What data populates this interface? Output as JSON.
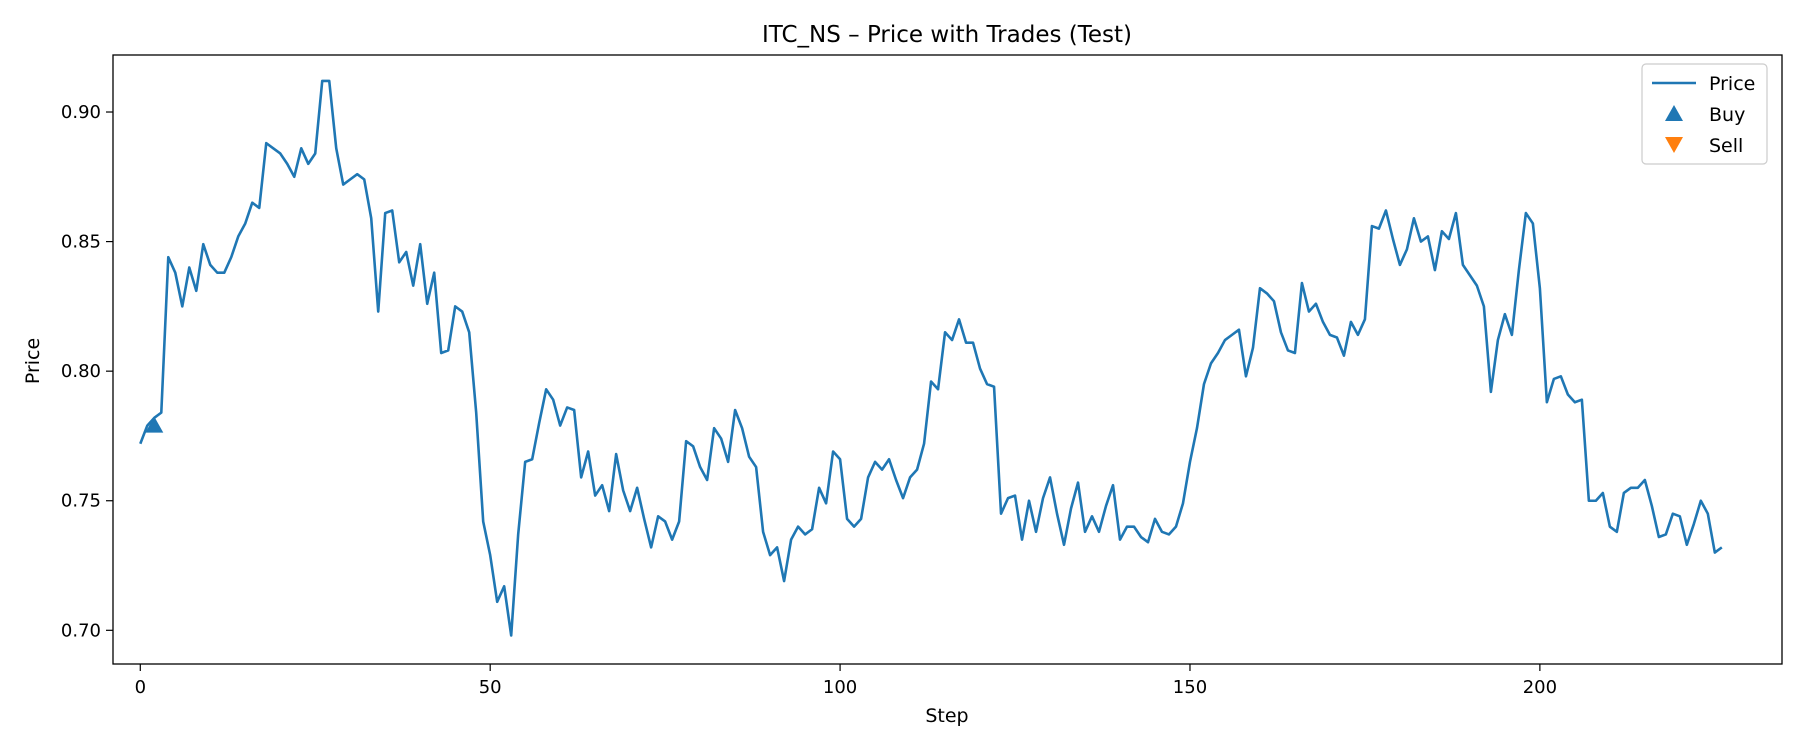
{
  "chart_data": {
    "type": "line",
    "title": "ITC_NS – Price with Trades (Test)",
    "xlabel": "Step",
    "ylabel": "Price",
    "xlim": [
      -3.9,
      234.6
    ],
    "ylim": [
      0.687,
      0.922
    ],
    "xticks": [
      0,
      50,
      100,
      150,
      200
    ],
    "yticks": [
      "0.70",
      "0.75",
      "0.80",
      "0.85",
      "0.90"
    ],
    "grid": false,
    "legend_position": "top-right",
    "colors": {
      "price": "#1f77b4",
      "buy": "#1f77b4",
      "sell": "#ff7f0e"
    },
    "series": [
      {
        "name": "Price",
        "x": [
          0,
          1,
          2,
          3,
          4,
          5,
          6,
          7,
          8,
          9,
          10,
          11,
          12,
          13,
          14,
          15,
          16,
          17,
          18,
          19,
          20,
          21,
          22,
          23,
          24,
          25,
          26,
          27,
          28,
          29,
          30,
          31,
          32,
          33,
          34,
          35,
          36,
          37,
          38,
          39,
          40,
          41,
          42,
          43,
          44,
          45,
          46,
          47,
          48,
          49,
          50,
          51,
          52,
          53,
          54,
          55,
          56,
          57,
          58,
          59,
          60,
          61,
          62,
          63,
          64,
          65,
          66,
          67,
          68,
          69,
          70,
          71,
          72,
          73,
          74,
          75,
          76,
          77,
          78,
          79,
          80,
          81,
          82,
          83,
          84,
          85,
          86,
          87,
          88,
          89,
          90,
          91,
          92,
          93,
          94,
          95,
          96,
          97,
          98,
          99,
          100,
          101,
          102,
          103,
          104,
          105,
          106,
          107,
          108,
          109,
          110,
          111,
          112,
          113,
          114,
          115,
          116,
          117,
          118,
          119,
          120,
          121,
          122,
          123,
          124,
          125,
          126,
          127,
          128,
          129,
          130,
          131,
          132,
          133,
          134,
          135,
          136,
          137,
          138,
          139,
          140,
          141,
          142,
          143,
          144,
          145,
          146,
          147,
          148,
          149,
          150,
          151,
          152,
          153,
          154,
          155,
          156,
          157,
          158,
          159,
          160,
          161,
          162,
          163,
          164,
          165,
          166,
          167,
          168,
          169,
          170,
          171,
          172,
          173,
          174,
          175,
          176,
          177,
          178,
          179,
          180,
          181,
          182,
          183,
          184,
          185,
          186,
          187,
          188,
          189,
          190,
          191,
          192,
          193,
          194,
          195,
          196,
          197,
          198,
          199,
          200,
          201,
          202,
          203,
          204,
          205,
          206,
          207,
          208,
          209,
          210,
          211,
          212,
          213,
          214,
          215,
          216,
          217,
          218,
          219,
          220,
          221,
          222,
          223,
          224,
          225,
          226
        ],
        "values": [
          0.772,
          0.779,
          0.782,
          0.784,
          0.844,
          0.838,
          0.825,
          0.84,
          0.831,
          0.849,
          0.841,
          0.838,
          0.838,
          0.844,
          0.852,
          0.857,
          0.865,
          0.863,
          0.888,
          0.886,
          0.884,
          0.88,
          0.875,
          0.886,
          0.88,
          0.884,
          0.912,
          0.912,
          0.886,
          0.872,
          0.874,
          0.876,
          0.874,
          0.859,
          0.823,
          0.861,
          0.862,
          0.842,
          0.846,
          0.833,
          0.849,
          0.826,
          0.838,
          0.807,
          0.808,
          0.825,
          0.823,
          0.815,
          0.784,
          0.742,
          0.729,
          0.711,
          0.717,
          0.698,
          0.737,
          0.765,
          0.766,
          0.78,
          0.793,
          0.789,
          0.779,
          0.786,
          0.785,
          0.759,
          0.769,
          0.752,
          0.756,
          0.746,
          0.768,
          0.754,
          0.746,
          0.755,
          0.743,
          0.732,
          0.744,
          0.742,
          0.735,
          0.742,
          0.773,
          0.771,
          0.763,
          0.758,
          0.778,
          0.774,
          0.765,
          0.785,
          0.778,
          0.767,
          0.763,
          0.738,
          0.729,
          0.732,
          0.719,
          0.735,
          0.74,
          0.737,
          0.739,
          0.755,
          0.749,
          0.769,
          0.766,
          0.743,
          0.74,
          0.743,
          0.759,
          0.765,
          0.762,
          0.766,
          0.758,
          0.751,
          0.759,
          0.762,
          0.772,
          0.796,
          0.793,
          0.815,
          0.812,
          0.82,
          0.811,
          0.811,
          0.801,
          0.795,
          0.794,
          0.745,
          0.751,
          0.752,
          0.735,
          0.75,
          0.738,
          0.751,
          0.759,
          0.745,
          0.733,
          0.747,
          0.757,
          0.738,
          0.744,
          0.738,
          0.748,
          0.756,
          0.735,
          0.74,
          0.74,
          0.736,
          0.734,
          0.743,
          0.738,
          0.737,
          0.74,
          0.749,
          0.765,
          0.778,
          0.795,
          0.803,
          0.807,
          0.812,
          0.814,
          0.816,
          0.798,
          0.809,
          0.832,
          0.83,
          0.827,
          0.815,
          0.808,
          0.807,
          0.834,
          0.823,
          0.826,
          0.819,
          0.814,
          0.813,
          0.806,
          0.819,
          0.814,
          0.82,
          0.856,
          0.855,
          0.862,
          0.851,
          0.841,
          0.847,
          0.859,
          0.85,
          0.852,
          0.839,
          0.854,
          0.851,
          0.861,
          0.841,
          0.837,
          0.833,
          0.825,
          0.792,
          0.812,
          0.822,
          0.814,
          0.839,
          0.861,
          0.857,
          0.832,
          0.788,
          0.797,
          0.798,
          0.791,
          0.788,
          0.789,
          0.75,
          0.75,
          0.753,
          0.74,
          0.738,
          0.753,
          0.755,
          0.755,
          0.758,
          0.748,
          0.736,
          0.737,
          0.745,
          0.744,
          0.733,
          0.741,
          0.75,
          0.745,
          0.73,
          0.732
        ]
      }
    ],
    "markers": [
      {
        "name": "Buy",
        "type": "triangle-up",
        "x": [
          2
        ],
        "values": [
          0.779
        ]
      },
      {
        "name": "Sell",
        "type": "triangle-down",
        "x": [],
        "values": []
      }
    ]
  }
}
